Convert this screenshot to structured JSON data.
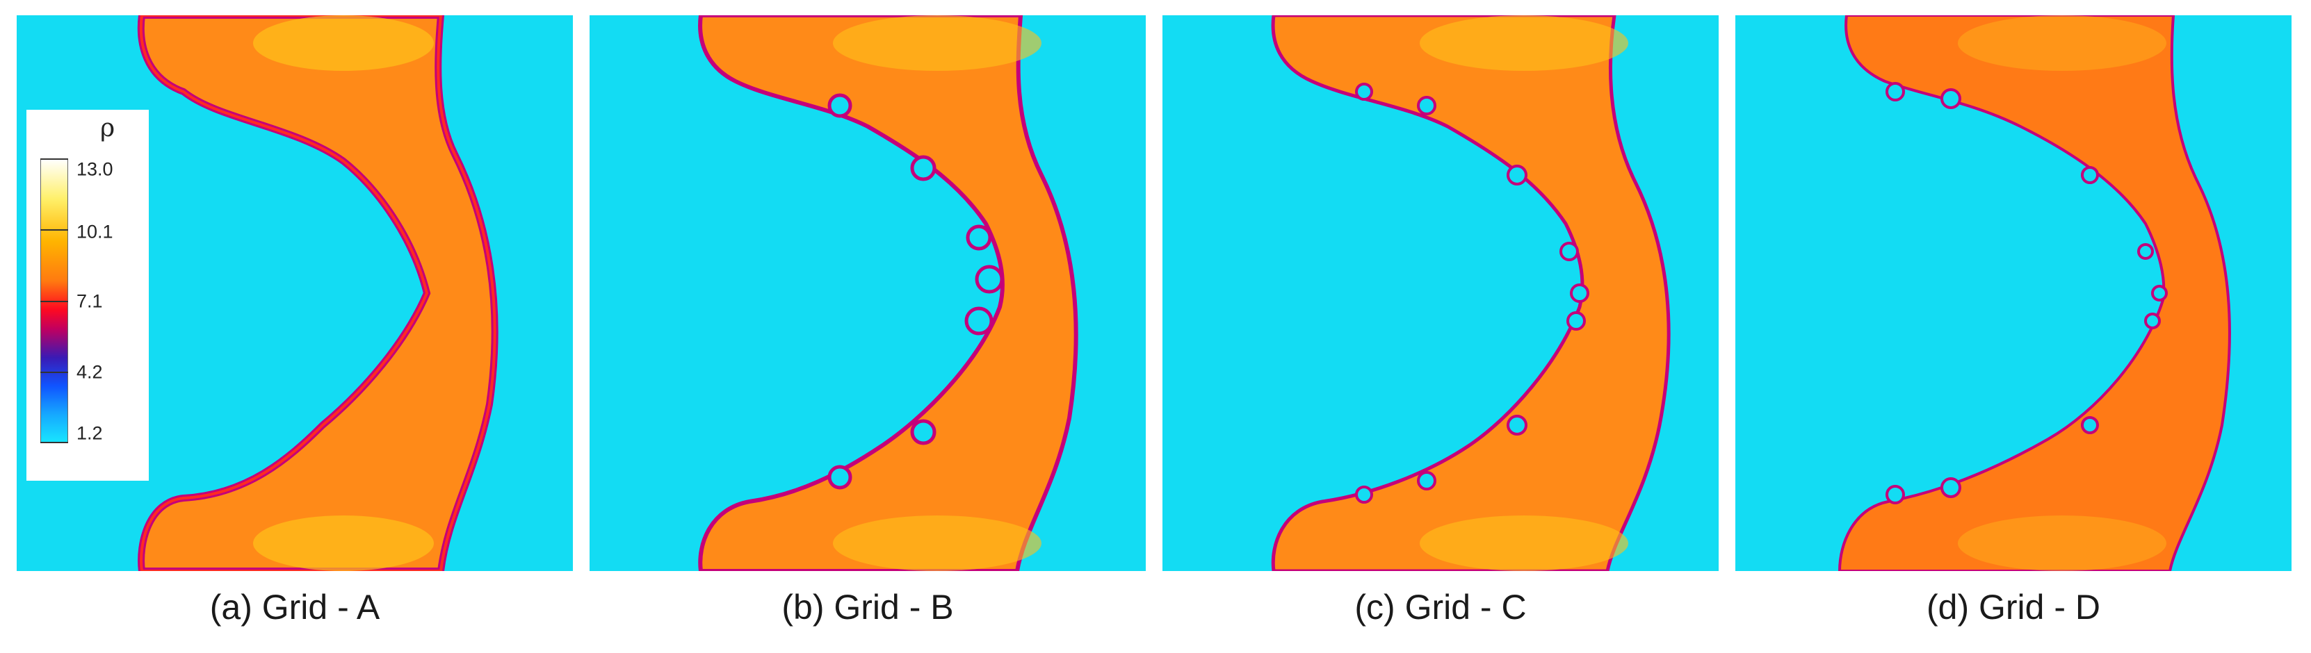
{
  "colors": {
    "background_fluid": "#13dcf3",
    "shocked_gas": "#ff8a18",
    "hot_gas": "#ffc21a",
    "interface": "#c4007a",
    "interface_edge": "#ff2a22"
  },
  "legend": {
    "symbol": "ρ",
    "labels": [
      "13.0",
      "10.1",
      "7.1",
      "4.2",
      "1.2"
    ]
  },
  "panels": [
    {
      "caption": "(a) Grid - A"
    },
    {
      "caption": "(b) Grid - B"
    },
    {
      "caption": "(c) Grid - C"
    },
    {
      "caption": "(d) Grid - D"
    }
  ]
}
